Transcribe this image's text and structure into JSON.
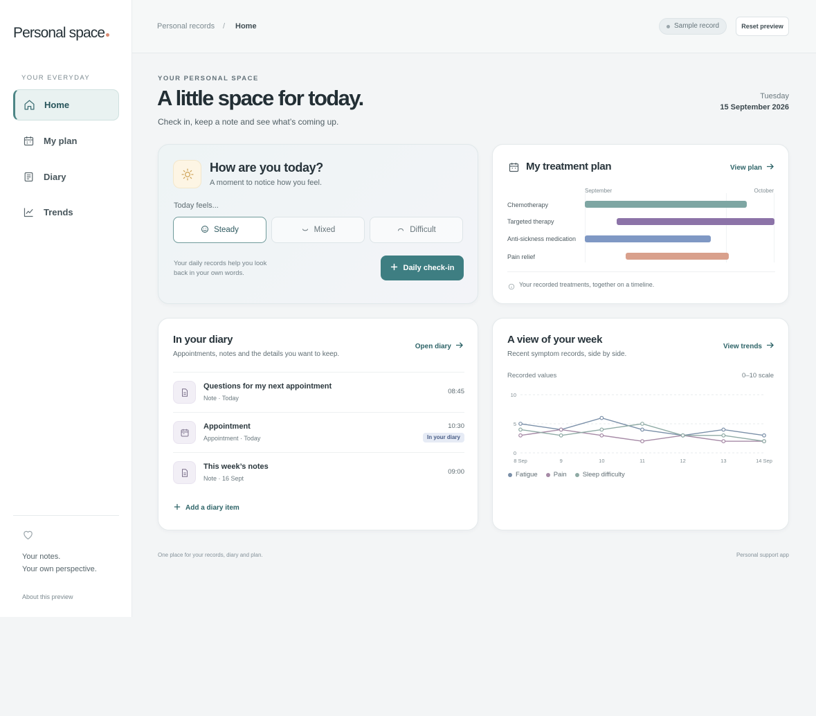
{
  "app": {
    "logo": "Personal space"
  },
  "sidebar": {
    "caption": "YOUR EVERYDAY",
    "items": [
      {
        "label": "Home",
        "icon": "home-icon",
        "active": true
      },
      {
        "label": "My plan",
        "icon": "calendar-icon",
        "active": false
      },
      {
        "label": "Diary",
        "icon": "diary-icon",
        "active": false
      },
      {
        "label": "Trends",
        "icon": "trend-icon",
        "active": false
      }
    ],
    "note_line1": "Your notes.",
    "note_line2": "Your own perspective.",
    "about": "About this preview"
  },
  "header": {
    "breadcrumb_root": "Personal records",
    "breadcrumb_sep": "/",
    "breadcrumb_current": "Home",
    "badge": "Sample record",
    "reset": "Reset preview"
  },
  "hero": {
    "eyebrow": "YOUR PERSONAL SPACE",
    "title": "A little space for today.",
    "subtitle": "Check in, keep a note and see what’s coming up.",
    "day": "Tuesday",
    "date": "15 September 2026"
  },
  "checkin": {
    "title": "How are you today?",
    "subtitle": "A moment to notice how you feel.",
    "label": "Today feels...",
    "options": [
      {
        "label": "Steady",
        "selected": true
      },
      {
        "label": "Mixed",
        "selected": false
      },
      {
        "label": "Difficult",
        "selected": false
      }
    ],
    "help": "Your daily records help you look back in your own words.",
    "button": "Daily check-in"
  },
  "plan": {
    "title": "My treatment plan",
    "link": "View plan",
    "month_start": "September",
    "month_end": "October",
    "rows": [
      {
        "label": "Chemotherapy",
        "color": "#7ea6a3",
        "start": 0.0,
        "end": 0.855
      },
      {
        "label": "Targeted therapy",
        "color": "#8c73a8",
        "start": 0.168,
        "end": 1.0
      },
      {
        "label": "Anti-sickness medication",
        "color": "#7f98c4",
        "start": 0.0,
        "end": 0.664
      },
      {
        "label": "Pain relief",
        "color": "#d9a08c",
        "start": 0.215,
        "end": 0.759
      }
    ],
    "footer": "Your recorded treatments, together on a timeline."
  },
  "diary": {
    "title": "In your diary",
    "subtitle": "Appointments, notes and the details you want to keep.",
    "link": "Open diary",
    "items": [
      {
        "title": "Questions for my next appointment",
        "meta": "Note · Today",
        "time": "08:45",
        "badge": "",
        "icon": "document-icon"
      },
      {
        "title": "Appointment",
        "meta": "Appointment · Today",
        "time": "10:30",
        "badge": "In your diary",
        "icon": "calendar-icon"
      },
      {
        "title": "This week’s notes",
        "meta": "Note · 16 Sept",
        "time": "09:00",
        "badge": "",
        "icon": "document-icon"
      }
    ],
    "add": "Add a diary item"
  },
  "week": {
    "title": "A view of your week",
    "subtitle": "Recent symptom records, side by side.",
    "link": "View trends",
    "caption_left": "Recorded values",
    "caption_right": "0–10 scale"
  },
  "chart_data": {
    "type": "line",
    "x": [
      "8 Sep",
      "9",
      "10",
      "11",
      "12",
      "13",
      "14 Sep"
    ],
    "ylim": [
      0,
      10
    ],
    "yticks": [
      0,
      5,
      10
    ],
    "grid": true,
    "legend_position": "bottom-left",
    "series": [
      {
        "name": "Fatigue",
        "color": "#7a8fa8",
        "values": [
          5,
          4,
          6,
          4,
          3,
          4,
          3
        ]
      },
      {
        "name": "Pain",
        "color": "#a68aa6",
        "values": [
          3,
          4,
          3,
          2,
          3,
          2,
          2
        ]
      },
      {
        "name": "Sleep difficulty",
        "color": "#8eaaa4",
        "values": [
          4,
          3,
          4,
          5,
          3,
          3,
          2
        ]
      }
    ]
  },
  "footer": {
    "left": "One place for your records, diary and plan.",
    "right": "Personal support app"
  },
  "colors": {
    "accent": "#3e7e82",
    "logo_dot": "#d98a72"
  }
}
